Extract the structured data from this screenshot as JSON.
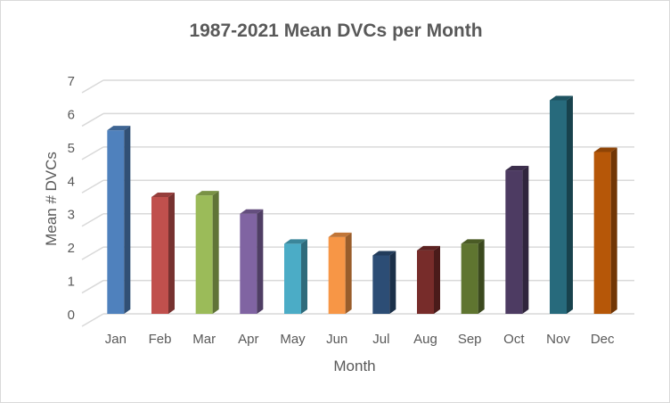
{
  "chart_data": {
    "type": "bar",
    "title": "1987-2021 Mean DVCs per Month",
    "xlabel": "Month",
    "ylabel": "Mean # DVCs",
    "categories": [
      "Jan",
      "Feb",
      "Mar",
      "Apr",
      "May",
      "Jun",
      "Jul",
      "Aug",
      "Sep",
      "Oct",
      "Nov",
      "Dec"
    ],
    "values": [
      5.5,
      3.5,
      3.55,
      3.0,
      2.1,
      2.3,
      1.75,
      1.9,
      2.1,
      4.3,
      6.4,
      4.85
    ],
    "ylim": [
      0,
      7
    ],
    "yticks": [
      0,
      1,
      2,
      3,
      4,
      5,
      6,
      7
    ],
    "grid": true,
    "legend": "none",
    "style_3d": true,
    "colors": [
      "#4f81bd",
      "#c0504d",
      "#9bbb59",
      "#8064a2",
      "#4bacc6",
      "#f79646",
      "#2c4d75",
      "#772c2a",
      "#5f7530",
      "#4d3b62",
      "#276a7c",
      "#b65708"
    ]
  }
}
